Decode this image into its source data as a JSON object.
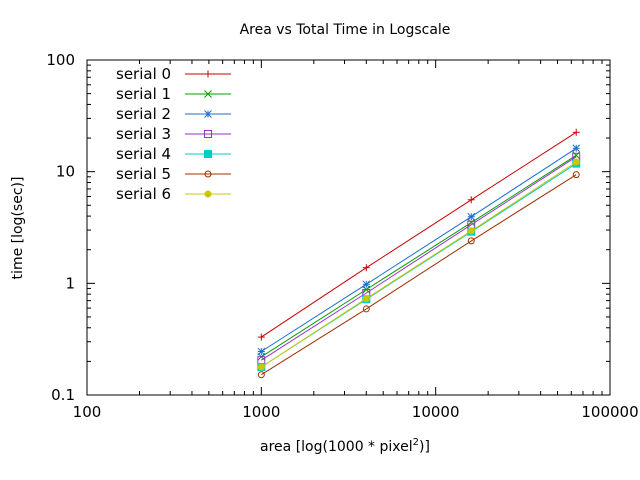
{
  "chart_data": {
    "type": "line",
    "title": "Area vs Total Time in Logscale",
    "xlabel": "area [log(1000 * pixel",
    "xlabel_sup": "2",
    "xlabel_end": ")]",
    "ylabel": "time [log(sec)]",
    "xscale": "log",
    "yscale": "log",
    "xlim": [
      100,
      100000
    ],
    "ylim": [
      0.1,
      100
    ],
    "x_ticks": [
      100,
      1000,
      10000,
      100000
    ],
    "x_tick_labels": [
      "100",
      "1000",
      "10000",
      "100000"
    ],
    "y_ticks": [
      0.1,
      1,
      10,
      100
    ],
    "y_tick_labels": [
      "0.1",
      "1",
      "10",
      "100"
    ],
    "grid": false,
    "legend_position": "top-left",
    "x": [
      1000,
      4000,
      16000,
      64000
    ],
    "series": [
      {
        "name": "serial 0",
        "color": "#cc0000",
        "marker": "plus",
        "values": [
          0.33,
          1.38,
          5.6,
          22.5
        ]
      },
      {
        "name": "serial 1",
        "color": "#00a000",
        "marker": "cross",
        "values": [
          0.22,
          0.88,
          3.5,
          14.0
        ]
      },
      {
        "name": "serial 2",
        "color": "#1a6fcf",
        "marker": "star",
        "values": [
          0.245,
          0.98,
          3.95,
          16.2
        ]
      },
      {
        "name": "serial 3",
        "color": "#9933cc",
        "marker": "square-open",
        "values": [
          0.205,
          0.82,
          3.35,
          13.6
        ]
      },
      {
        "name": "serial 4",
        "color": "#00cccc",
        "marker": "square-filled",
        "values": [
          0.178,
          0.72,
          2.9,
          11.8
        ]
      },
      {
        "name": "serial 5",
        "color": "#a03000",
        "marker": "circle-open",
        "values": [
          0.152,
          0.59,
          2.4,
          9.4
        ]
      },
      {
        "name": "serial 6",
        "color": "#c8c800",
        "marker": "circle-filled",
        "values": [
          0.178,
          0.73,
          2.95,
          12.2
        ]
      }
    ]
  }
}
